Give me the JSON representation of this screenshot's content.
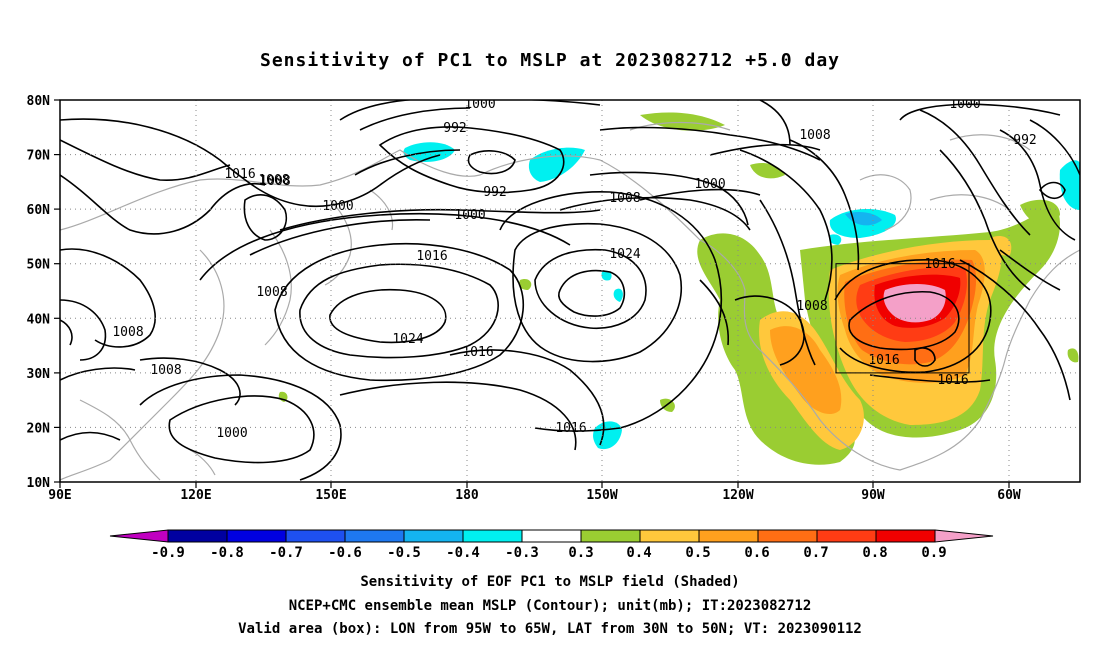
{
  "title": "Sensitivity of PC1 to MSLP at 2023082712 +5.0 day",
  "axes": {
    "y_ticks": [
      "80N",
      "70N",
      "60N",
      "50N",
      "40N",
      "30N",
      "20N",
      "10N"
    ],
    "x_ticks": [
      "90E",
      "120E",
      "150E",
      "180",
      "150W",
      "120W",
      "90W",
      "60W"
    ]
  },
  "colorbar": {
    "labels": [
      "-0.9",
      "-0.8",
      "-0.7",
      "-0.6",
      "-0.5",
      "-0.4",
      "-0.3",
      "0.3",
      "0.4",
      "0.5",
      "0.6",
      "0.7",
      "0.8",
      "0.9"
    ],
    "colors": {
      "left_tip": "#c000c0",
      "segments": [
        "#0000a0",
        "#0000e0",
        "#1e50f0",
        "#1e78f0",
        "#14b4f0",
        "#00f0f0",
        "#ffffff",
        "#9acd32",
        "#ffc83c",
        "#ffa01e",
        "#ff6e14",
        "#ff3c14",
        "#f00000"
      ],
      "right_tip": "#f4a0c8"
    }
  },
  "contour_labels": [
    "1000",
    "992",
    "992",
    "1000",
    "1000",
    "1016",
    "1008",
    "1000",
    "1008",
    "1000",
    "1008",
    "1016",
    "1008",
    "1008",
    "1008",
    "1008",
    "1024",
    "1016",
    "1024",
    "1016",
    "1000",
    "1008",
    "1016",
    "1016",
    "1016",
    "992"
  ],
  "captions": {
    "line1": "Sensitivity of EOF PC1 to MSLP field (Shaded)",
    "line2": "NCEP+CMC ensemble mean MSLP (Contour); unit(mb); IT:2023082712",
    "line3": "Valid area (box): LON from 95W to 65W, LAT from 30N to 50N; VT: 2023090112"
  }
}
